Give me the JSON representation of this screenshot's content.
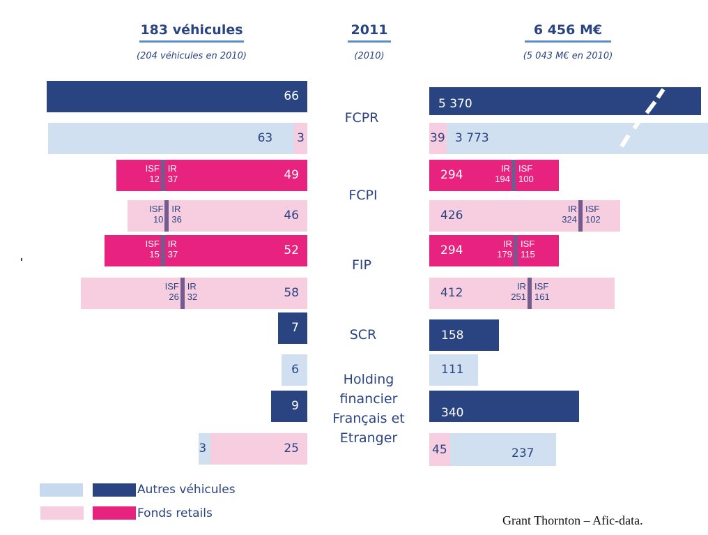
{
  "chart_data": {
    "type": "bar",
    "title": "2011",
    "subtitle": "(2010)",
    "colors": {
      "autres_2011": "#2a4482",
      "autres_2010": "#d0e0f0",
      "retail_2011": "#e8237f",
      "retail_2010": "#f7cde0",
      "split_divider": "#735a8f",
      "text": "#2a4482",
      "underline": "#5b8ec8"
    },
    "left_panel": {
      "title": "183 véhicules",
      "subtitle": "(204  véhicules en 2010)",
      "unit": "véhicules"
    },
    "right_panel": {
      "title": "6 456 M€",
      "subtitle": "(5 043 M€ en 2010)",
      "unit": "M€",
      "note": "FCPR bars are truncated (axis break shown with dashed line)"
    },
    "categories": [
      "FCPR",
      "FCPI",
      "FIP",
      "SCR",
      "Holding financier Français et Etranger"
    ],
    "rows": [
      {
        "category": "FCPR",
        "year": "2011",
        "vehicles": {
          "autres": 66,
          "retail": 0,
          "label": "66"
        },
        "amount": {
          "autres": 5370,
          "retail": 0,
          "label": "5 370",
          "truncated": true
        }
      },
      {
        "category": "FCPR",
        "year": "2010",
        "vehicles": {
          "autres": 63,
          "retail": 3,
          "labels": [
            "63",
            "3"
          ]
        },
        "amount": {
          "autres": 3773,
          "retail": 39,
          "labels": [
            "39",
            "3 773"
          ],
          "truncated": true
        }
      },
      {
        "category": "FCPI",
        "year": "2011",
        "vehicles": {
          "retail": 49,
          "label": "49",
          "isf": 12,
          "ir": 37
        },
        "amount": {
          "retail": 294,
          "label": "294",
          "ir": 194,
          "isf": 100
        }
      },
      {
        "category": "FCPI",
        "year": "2010",
        "vehicles": {
          "retail": 46,
          "label": "46",
          "isf": 10,
          "ir": 36
        },
        "amount": {
          "retail": 426,
          "label": "426",
          "ir": 324,
          "isf": 102
        }
      },
      {
        "category": "FIP",
        "year": "2011",
        "vehicles": {
          "retail": 52,
          "label": "52",
          "isf": 15,
          "ir": 37
        },
        "amount": {
          "retail": 294,
          "label": "294",
          "ir": 179,
          "isf": 115
        }
      },
      {
        "category": "FIP",
        "year": "2010",
        "vehicles": {
          "retail": 58,
          "label": "58",
          "isf": 26,
          "ir": 32
        },
        "amount": {
          "retail": 412,
          "label": "412",
          "ir": 251,
          "isf": 161
        }
      },
      {
        "category": "SCR",
        "year": "2011",
        "vehicles": {
          "autres": 7,
          "label": "7"
        },
        "amount": {
          "autres": 158,
          "label": "158"
        }
      },
      {
        "category": "Holding financier Français et Etranger",
        "year": "2010",
        "vehicles": {
          "autres": 6,
          "label": "6"
        },
        "amount": {
          "autres": 111,
          "label": "111"
        }
      },
      {
        "category": "Holding financier Français et Etranger",
        "year": "2011",
        "vehicles": {
          "autres": 9,
          "label": "9"
        },
        "amount": {
          "autres": 340,
          "label": "340"
        }
      },
      {
        "category": "Holding financier Français et Etranger",
        "year": "2010b",
        "vehicles": {
          "autres": 3,
          "retail": 25,
          "labels": [
            "3",
            "25"
          ]
        },
        "amount": {
          "autres": 237,
          "retail": 45,
          "labels": [
            "45",
            "237"
          ]
        }
      }
    ],
    "split_labels": {
      "isf": "ISF",
      "ir": "IR"
    },
    "legend": [
      {
        "label": "Autres véhicules",
        "colors": [
          "#d0e0f0",
          "#2a4482"
        ]
      },
      {
        "label": "Fonds retails",
        "colors": [
          "#f7cde0",
          "#e8237f"
        ]
      }
    ],
    "legend_position": "bottom-left",
    "source": "Grant Thornton – Afic-data."
  },
  "labels": {
    "cat_fcpr": "FCPR",
    "cat_fcpi": "FCPI",
    "cat_fip": "FIP",
    "cat_scr": "SCR",
    "cat_holding": "Holding financier Français et Etranger"
  }
}
